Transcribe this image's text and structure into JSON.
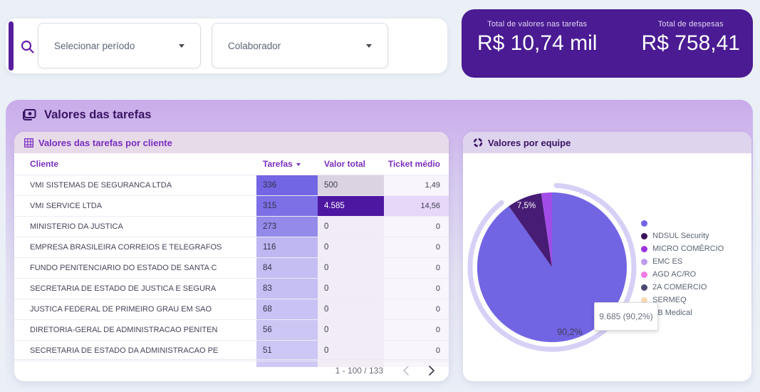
{
  "page": {
    "background": "#EAF0F6"
  },
  "topbar": {
    "filters": [
      {
        "placeholder": "Selecionar período"
      },
      {
        "placeholder": "Colaborador"
      }
    ],
    "totals": {
      "background": "#4A1B92",
      "items": [
        {
          "label": "Total de valores nas tarefas",
          "value": "R$ 10,74 mil"
        },
        {
          "label": "Total de despesas",
          "value": "R$ 758,41"
        }
      ]
    }
  },
  "panel": {
    "title": "Valores das tarefas",
    "table_card": {
      "title": "Valores das tarefas por cliente",
      "columns": [
        "Cliente",
        "Tarefas",
        "Valor total",
        "Ticket médio"
      ],
      "sorted_by": "Tarefas",
      "rows": [
        {
          "cliente": "VMI SISTEMAS DE SEGURANCA LTDA",
          "cells": [
            {
              "text": "336",
              "bg": "#7366E4",
              "fg": "#33334A"
            },
            {
              "text": "500",
              "bg": "#DBD3E2",
              "fg": "#3F3F52"
            },
            {
              "text": "1,49",
              "bg": "#F8F5FC",
              "fg": "#3F3F52"
            }
          ]
        },
        {
          "cliente": "VMI SERVICE LTDA",
          "cells": [
            {
              "text": "315",
              "bg": "#7D70E7",
              "fg": "#33334A"
            },
            {
              "text": "4.585",
              "bg": "#4D17A1",
              "fg": "#FFFFFF"
            },
            {
              "text": "14,56",
              "bg": "#E7D7F8",
              "fg": "#3F3F52"
            }
          ]
        },
        {
          "cliente": "MINISTERIO DA JUSTICA",
          "cells": [
            {
              "text": "273",
              "bg": "#948AEA",
              "fg": "#33334A"
            },
            {
              "text": "0",
              "bg": "#F1ECF6",
              "fg": "#3F3F52"
            },
            {
              "text": "0",
              "bg": "#F8F5FC",
              "fg": "#3F3F52"
            }
          ]
        },
        {
          "cliente": "EMPRESA BRASILEIRA CORREIOS E TELEGRAFOS",
          "cells": [
            {
              "text": "116",
              "bg": "#BFB7F1",
              "fg": "#33334A"
            },
            {
              "text": "0",
              "bg": "#F1ECF6",
              "fg": "#3F3F52"
            },
            {
              "text": "0",
              "bg": "#F8F5FC",
              "fg": "#3F3F52"
            }
          ]
        },
        {
          "cliente": "FUNDO PENITENCIARIO DO ESTADO DE SANTA C",
          "cells": [
            {
              "text": "84",
              "bg": "#C5BEF3",
              "fg": "#33334A"
            },
            {
              "text": "0",
              "bg": "#F1ECF6",
              "fg": "#3F3F52"
            },
            {
              "text": "0",
              "bg": "#F8F5FC",
              "fg": "#3F3F52"
            }
          ]
        },
        {
          "cliente": "SECRETARIA DE ESTADO DE JUSTICA E SEGURA",
          "cells": [
            {
              "text": "83",
              "bg": "#C6BFF3",
              "fg": "#33334A"
            },
            {
              "text": "0",
              "bg": "#F1ECF6",
              "fg": "#3F3F52"
            },
            {
              "text": "0",
              "bg": "#F8F5FC",
              "fg": "#3F3F52"
            }
          ]
        },
        {
          "cliente": "JUSTICA FEDERAL DE PRIMEIRO GRAU EM SAO",
          "cells": [
            {
              "text": "68",
              "bg": "#C9C2F4",
              "fg": "#33334A"
            },
            {
              "text": "0",
              "bg": "#F1ECF6",
              "fg": "#3F3F52"
            },
            {
              "text": "0",
              "bg": "#F8F5FC",
              "fg": "#3F3F52"
            }
          ]
        },
        {
          "cliente": "DIRETORIA-GERAL DE ADMINISTRACAO PENITEN",
          "cells": [
            {
              "text": "56",
              "bg": "#CCC6F5",
              "fg": "#33334A"
            },
            {
              "text": "0",
              "bg": "#F1ECF6",
              "fg": "#3F3F52"
            },
            {
              "text": "0",
              "bg": "#F8F5FC",
              "fg": "#3F3F52"
            }
          ]
        },
        {
          "cliente": "SECRETARIA DE ESTADO DA ADMINISTRACAO PE",
          "cells": [
            {
              "text": "51",
              "bg": "#CDC7F5",
              "fg": "#33334A"
            },
            {
              "text": "0",
              "bg": "#F1ECF6",
              "fg": "#3F3F52"
            },
            {
              "text": "0",
              "bg": "#F8F5FC",
              "fg": "#3F3F52"
            }
          ]
        }
      ],
      "filler_colors": [
        "#CFC9F5",
        "#F1ECF6",
        "#F8F5FC"
      ],
      "pagination": {
        "range": "1 - 100 / 133"
      }
    },
    "pie_card": {
      "title": "Valores por equipe",
      "ring_color": "#D7D0F6",
      "slice_labels": {
        "small": "7,5%",
        "big": "90,2%"
      },
      "tooltip": "9.685 (90,2%)",
      "legend": [
        {
          "label": "",
          "color": "#7165E3"
        },
        {
          "label": "NDSUL Security",
          "color": "#3A1158"
        },
        {
          "label": "MICRO COMÉRCIO",
          "color": "#9C33DB"
        },
        {
          "label": "EMC ES",
          "color": "#BE9BEF"
        },
        {
          "label": "AGD AC/RO",
          "color": "#F07BE4"
        },
        {
          "label": "2A COMERCIO",
          "color": "#4C4A72"
        },
        {
          "label": "SERMEQ",
          "color": "#F8D9B3"
        },
        {
          "label": "SB Medical",
          "color": "#C9CDD4"
        }
      ]
    }
  },
  "chart_data": [
    {
      "type": "pie",
      "title": "Valores por equipe",
      "slices": [
        {
          "label": "",
          "pct": 90.2,
          "value": 9685,
          "color": "#7165E3"
        },
        {
          "label": "NDSUL Security",
          "pct": 7.5,
          "color": "#471C74"
        },
        {
          "label": "MICRO COMÉRCIO",
          "pct": 2.3,
          "color": "#A24CE8"
        }
      ],
      "legend_position": "right",
      "highlighted_slice": 0,
      "tooltip": "9.685 (90,2%)"
    },
    {
      "type": "table",
      "title": "Valores das tarefas por cliente",
      "categories": [
        "VMI SISTEMAS DE SEGURANCA LTDA",
        "VMI SERVICE LTDA",
        "MINISTERIO DA JUSTICA",
        "EMPRESA BRASILEIRA CORREIOS E TELEGRAFOS",
        "FUNDO PENITENCIARIO DO ESTADO DE SANTA C",
        "SECRETARIA DE ESTADO DE JUSTICA E SEGURA",
        "JUSTICA FEDERAL DE PRIMEIRO GRAU EM SAO",
        "DIRETORIA-GERAL DE ADMINISTRACAO PENITEN",
        "SECRETARIA DE ESTADO DA ADMINISTRACAO PE"
      ],
      "series": [
        {
          "name": "Tarefas",
          "values": [
            336,
            315,
            273,
            116,
            84,
            83,
            68,
            56,
            51
          ]
        },
        {
          "name": "Valor total",
          "values": [
            500,
            4585,
            0,
            0,
            0,
            0,
            0,
            0,
            0
          ]
        },
        {
          "name": "Ticket médio",
          "values": [
            1.49,
            14.56,
            0,
            0,
            0,
            0,
            0,
            0,
            0
          ]
        }
      ]
    }
  ]
}
